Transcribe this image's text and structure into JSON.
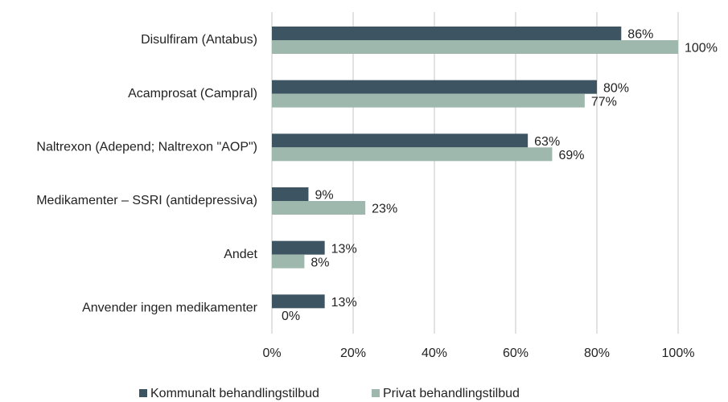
{
  "chart_data": {
    "type": "bar",
    "orientation": "horizontal",
    "categories": [
      "Disulfiram (Antabus)",
      "Acamprosat (Campral)",
      "Naltrexon (Adepend; Naltrexon \"AOP\")",
      "Medikamenter – SSRI (antidepressiva)",
      "Andet",
      "Anvender ingen medikamenter"
    ],
    "series": [
      {
        "name": "Kommunalt behandlingstilbud",
        "color": "#3d5563",
        "values": [
          86,
          80,
          63,
          9,
          13,
          13
        ],
        "value_labels": [
          "86%",
          "80%",
          "63%",
          "9%",
          "13%",
          "13%"
        ]
      },
      {
        "name": "Privat behandlingstilbud",
        "color": "#9fb8ad",
        "values": [
          100,
          77,
          69,
          23,
          8,
          0
        ],
        "value_labels": [
          "100%",
          "77%",
          "69%",
          "23%",
          "8%",
          "0%"
        ]
      }
    ],
    "xlim": [
      0,
      100
    ],
    "xticks": [
      {
        "value": 0,
        "label": "0%"
      },
      {
        "value": 20,
        "label": "20%"
      },
      {
        "value": 40,
        "label": "40%"
      },
      {
        "value": 60,
        "label": "60%"
      },
      {
        "value": 80,
        "label": "80%"
      },
      {
        "value": 100,
        "label": "100%"
      }
    ],
    "grid": true,
    "legend": "bottom"
  }
}
